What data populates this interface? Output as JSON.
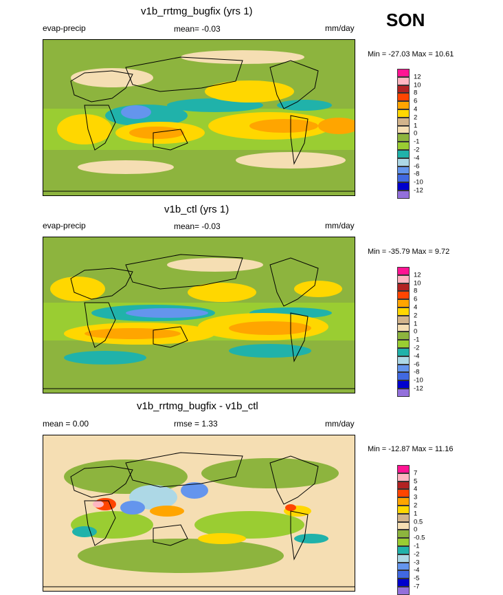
{
  "season": "SON",
  "panels": [
    {
      "title": "v1b_rrtmg_bugfix (yrs 1)",
      "left_label": "evap-precip",
      "center_label": "mean=  -0.03",
      "right_label": "mm/day",
      "minmax": "Min = -27.03 Max =  10.61"
    },
    {
      "title": "v1b_ctl (yrs 1)",
      "left_label": "evap-precip",
      "center_label": "mean=  -0.03",
      "right_label": "mm/day",
      "minmax": "Min = -35.79 Max =   9.72"
    },
    {
      "title": "v1b_rrtmg_bugfix - v1b_ctl",
      "left_label": "mean =   0.00",
      "center_label": "rmse =   1.33",
      "right_label": "mm/day",
      "minmax": "Min = -12.87 Max =  11.16"
    }
  ],
  "colorbars": [
    {
      "labels": [
        "12",
        "10",
        "8",
        "6",
        "4",
        "2",
        "1",
        "0",
        "-1",
        "-2",
        "-4",
        "-6",
        "-8",
        "-10",
        "-12"
      ],
      "colors": [
        "#ff1493",
        "#ffb6c1",
        "#b22222",
        "#ff4500",
        "#ffa500",
        "#ffd700",
        "#d2b48c",
        "#f5deb3",
        "#8db43e",
        "#9acd32",
        "#20b2aa",
        "#add8e6",
        "#6495ed",
        "#4169e1",
        "#0000cd",
        "#9370db"
      ]
    },
    {
      "labels": [
        "12",
        "10",
        "8",
        "6",
        "4",
        "2",
        "1",
        "0",
        "-1",
        "-2",
        "-4",
        "-6",
        "-8",
        "-10",
        "-12"
      ],
      "colors": [
        "#ff1493",
        "#ffb6c1",
        "#b22222",
        "#ff4500",
        "#ffa500",
        "#ffd700",
        "#d2b48c",
        "#f5deb3",
        "#8db43e",
        "#9acd32",
        "#20b2aa",
        "#add8e6",
        "#6495ed",
        "#4169e1",
        "#0000cd",
        "#9370db"
      ]
    },
    {
      "labels": [
        "7",
        "5",
        "4",
        "3",
        "2",
        "1",
        "0.5",
        "0",
        "-0.5",
        "-1",
        "-2",
        "-3",
        "-4",
        "-5",
        "-7"
      ],
      "colors": [
        "#ff1493",
        "#ffb6c1",
        "#b22222",
        "#ff4500",
        "#ffa500",
        "#ffd700",
        "#d2b48c",
        "#f5deb3",
        "#8db43e",
        "#9acd32",
        "#20b2aa",
        "#add8e6",
        "#6495ed",
        "#4169e1",
        "#0000cd",
        "#9370db"
      ]
    }
  ],
  "chart_data": [
    {
      "type": "heatmap",
      "title": "v1b_rrtmg_bugfix (yrs 1)",
      "variable": "evap-precip",
      "units": "mm/day",
      "mean": -0.03,
      "min": -27.03,
      "max": 10.61,
      "levels": [
        -12,
        -10,
        -8,
        -6,
        -4,
        -2,
        -1,
        0,
        1,
        2,
        4,
        6,
        8,
        10,
        12
      ]
    },
    {
      "type": "heatmap",
      "title": "v1b_ctl (yrs 1)",
      "variable": "evap-precip",
      "units": "mm/day",
      "mean": -0.03,
      "min": -35.79,
      "max": 9.72,
      "levels": [
        -12,
        -10,
        -8,
        -6,
        -4,
        -2,
        -1,
        0,
        1,
        2,
        4,
        6,
        8,
        10,
        12
      ]
    },
    {
      "type": "heatmap",
      "title": "v1b_rrtmg_bugfix - v1b_ctl",
      "units": "mm/day",
      "mean": 0.0,
      "rmse": 1.33,
      "min": -12.87,
      "max": 11.16,
      "levels": [
        -7,
        -5,
        -4,
        -3,
        -2,
        -1,
        -0.5,
        0,
        0.5,
        1,
        2,
        3,
        4,
        5,
        7
      ]
    }
  ]
}
